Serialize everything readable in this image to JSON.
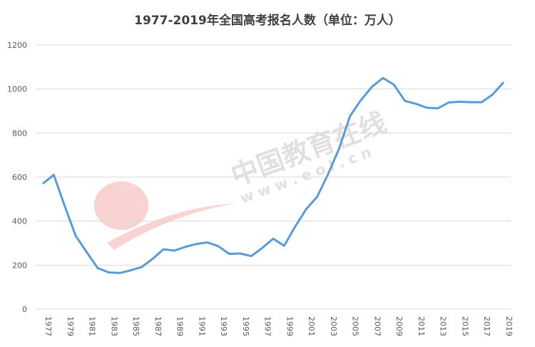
{
  "chart_data": {
    "type": "line",
    "title": "1977-2019年全国高考报名人数（单位：万人）",
    "categories": [
      "1977",
      null,
      "1979",
      null,
      "1981",
      null,
      "1983",
      null,
      "1985",
      null,
      "1987",
      null,
      "1989",
      null,
      "1991",
      null,
      "1993",
      null,
      "1995",
      null,
      "1997",
      null,
      "1999",
      null,
      "2001",
      null,
      "2003",
      null,
      "2005",
      null,
      "2007",
      null,
      "2009",
      null,
      "2011",
      null,
      "2013",
      null,
      "2015",
      null,
      "2017",
      null,
      "2019"
    ],
    "series": [
      {
        "name": "报名人数",
        "color": "#5b9bd5",
        "values": [
          570,
          610,
          468,
          333,
          259,
          187,
          167,
          164,
          176,
          191,
          228,
          272,
          266,
          283,
          296,
          303,
          286,
          251,
          253,
          241,
          278,
          320,
          288,
          375,
          454,
          510,
          613,
          729,
          877,
          950,
          1010,
          1050,
          1020,
          946,
          933,
          915,
          912,
          939,
          942,
          940,
          940,
          975,
          1031
        ]
      }
    ],
    "ylim": [
      0,
      1200
    ],
    "yticks": [
      0,
      200,
      400,
      600,
      800,
      1000,
      1200
    ],
    "grid": true,
    "watermark": {
      "text": "中国教育在线",
      "url": "w w w . e o l . c n"
    }
  }
}
